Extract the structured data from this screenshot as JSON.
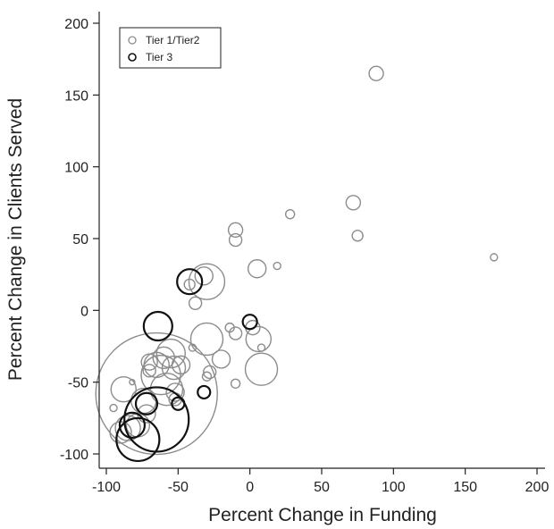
{
  "chart_data": {
    "type": "scatter",
    "title": "",
    "xlabel": "Percent Change in Funding",
    "ylabel": "Percent Change in Clients Served",
    "xlim": [
      -105,
      205
    ],
    "ylim": [
      -105,
      205
    ],
    "xticks": [
      -100,
      -50,
      0,
      50,
      100,
      150,
      200
    ],
    "yticks": [
      -100,
      -50,
      0,
      50,
      100,
      150,
      200
    ],
    "xtick_labels": [
      "-100",
      "-50",
      "0",
      "50",
      "100",
      "150",
      "200"
    ],
    "ytick_labels": [
      "-100",
      "-50",
      "0",
      "50",
      "100",
      "150",
      "200"
    ],
    "grid": false,
    "legend_position": "top-left",
    "size_encoding": "bubble radius",
    "series": [
      {
        "name": "Tier 1/Tier2",
        "color": "#8c8c8c",
        "points": [
          {
            "x": 88,
            "y": 165,
            "r": 8
          },
          {
            "x": 72,
            "y": 75,
            "r": 8
          },
          {
            "x": 75,
            "y": 52,
            "r": 6
          },
          {
            "x": 28,
            "y": 67,
            "r": 5
          },
          {
            "x": 19,
            "y": 31,
            "r": 4
          },
          {
            "x": 170,
            "y": 37,
            "r": 4
          },
          {
            "x": -10,
            "y": 56,
            "r": 8
          },
          {
            "x": -10,
            "y": 49,
            "r": 7
          },
          {
            "x": 5,
            "y": 29,
            "r": 10
          },
          {
            "x": -32,
            "y": 24,
            "r": 10
          },
          {
            "x": -30,
            "y": 20,
            "r": 20
          },
          {
            "x": -38,
            "y": 5,
            "r": 7
          },
          {
            "x": -42,
            "y": 18,
            "r": 6
          },
          {
            "x": -30,
            "y": -20,
            "r": 18
          },
          {
            "x": -14,
            "y": -12,
            "r": 5
          },
          {
            "x": -10,
            "y": -16,
            "r": 7
          },
          {
            "x": 2,
            "y": -12,
            "r": 8
          },
          {
            "x": 6,
            "y": -20,
            "r": 14
          },
          {
            "x": 8,
            "y": -26,
            "r": 4
          },
          {
            "x": 8,
            "y": -41,
            "r": 18
          },
          {
            "x": -10,
            "y": -51,
            "r": 5
          },
          {
            "x": -20,
            "y": -34,
            "r": 10
          },
          {
            "x": -28,
            "y": -43,
            "r": 7
          },
          {
            "x": -30,
            "y": -46,
            "r": 5
          },
          {
            "x": -40,
            "y": -26,
            "r": 4
          },
          {
            "x": -48,
            "y": -38,
            "r": 10
          },
          {
            "x": -53,
            "y": -40,
            "r": 13
          },
          {
            "x": -60,
            "y": -33,
            "r": 12
          },
          {
            "x": -55,
            "y": -30,
            "r": 16
          },
          {
            "x": -65,
            "y": -38,
            "r": 14
          },
          {
            "x": -62,
            "y": -45,
            "r": 22
          },
          {
            "x": -70,
            "y": -36,
            "r": 9
          },
          {
            "x": -70,
            "y": -42,
            "r": 7
          },
          {
            "x": -58,
            "y": -55,
            "r": 18
          },
          {
            "x": -52,
            "y": -57,
            "r": 10
          },
          {
            "x": -52,
            "y": -62,
            "r": 7
          },
          {
            "x": -65,
            "y": -58,
            "r": 68
          },
          {
            "x": -74,
            "y": -63,
            "r": 14
          },
          {
            "x": -82,
            "y": -50,
            "r": 3
          },
          {
            "x": -88,
            "y": -55,
            "r": 14
          },
          {
            "x": -95,
            "y": -68,
            "r": 4
          },
          {
            "x": -72,
            "y": -72,
            "r": 10
          },
          {
            "x": -78,
            "y": -80,
            "r": 13
          },
          {
            "x": -85,
            "y": -82,
            "r": 14
          },
          {
            "x": -90,
            "y": -85,
            "r": 12
          }
        ]
      },
      {
        "name": "Tier 3",
        "color": "#111111",
        "points": [
          {
            "x": -42,
            "y": 20,
            "r": 14
          },
          {
            "x": -64,
            "y": -11,
            "r": 16
          },
          {
            "x": 0,
            "y": -8,
            "r": 8
          },
          {
            "x": -32,
            "y": -57,
            "r": 7
          },
          {
            "x": -50,
            "y": -65,
            "r": 7
          },
          {
            "x": -72,
            "y": -65,
            "r": 12
          },
          {
            "x": -65,
            "y": -76,
            "r": 36
          },
          {
            "x": -82,
            "y": -80,
            "r": 14
          },
          {
            "x": -78,
            "y": -90,
            "r": 24
          }
        ]
      }
    ]
  }
}
